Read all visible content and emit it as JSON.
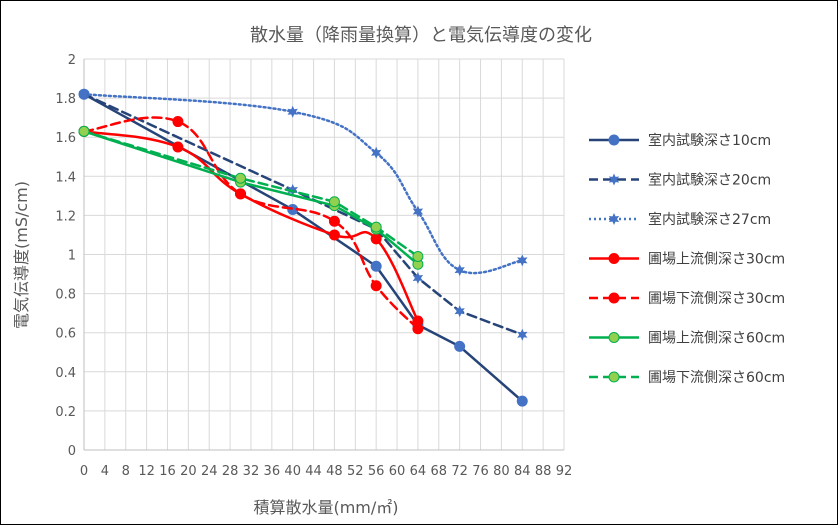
{
  "chart_data": {
    "type": "line",
    "title": "散水量（降雨量換算）と電気伝導度の変化",
    "xlabel": "積算散水量(mm/㎡)",
    "ylabel": "電気伝導度(mS/cm)",
    "xlim": [
      0,
      92
    ],
    "ylim": [
      0,
      2
    ],
    "x_ticks": [
      "0",
      "4",
      "8",
      "12",
      "16",
      "20",
      "24",
      "28",
      "32",
      "36",
      "40",
      "44",
      "48",
      "52",
      "56",
      "60",
      "64",
      "68",
      "72",
      "76",
      "80",
      "84",
      "88",
      "92"
    ],
    "y_ticks": [
      "0",
      "0.2",
      "0.4",
      "0.6",
      "0.8",
      "1",
      "1.2",
      "1.4",
      "1.6",
      "1.8",
      "2"
    ],
    "grid": true,
    "legend_position": "right",
    "series": [
      {
        "name": "室内試験深さ10cm",
        "color": "#264478",
        "line": "solid",
        "marker": "circle",
        "smooth": false,
        "points": [
          [
            0,
            1.82
          ],
          [
            40,
            1.23
          ],
          [
            56,
            0.94
          ],
          [
            64,
            0.64
          ],
          [
            72,
            0.53
          ],
          [
            84,
            0.25
          ]
        ]
      },
      {
        "name": "室内試験深さ20cm",
        "color": "#264478",
        "line": "dashed",
        "marker": "star",
        "smooth": false,
        "points": [
          [
            0,
            1.82
          ],
          [
            40,
            1.33
          ],
          [
            56,
            1.13
          ],
          [
            64,
            0.88
          ],
          [
            72,
            0.71
          ],
          [
            84,
            0.59
          ]
        ]
      },
      {
        "name": "室内試験深さ27cm",
        "color": "#4472C4",
        "line": "dotted",
        "marker": "star",
        "smooth": true,
        "points": [
          [
            0,
            1.82
          ],
          [
            40,
            1.73
          ],
          [
            56,
            1.52
          ],
          [
            64,
            1.22
          ],
          [
            72,
            0.92
          ],
          [
            84,
            0.97
          ]
        ]
      },
      {
        "name": "圃場上流側深さ30cm",
        "color": "#FF0000",
        "line": "solid",
        "marker": "circle",
        "smooth": true,
        "points": [
          [
            0,
            1.63
          ],
          [
            18,
            1.55
          ],
          [
            30,
            1.31
          ],
          [
            48,
            1.1
          ],
          [
            56,
            1.08
          ],
          [
            64,
            0.66
          ]
        ]
      },
      {
        "name": "圃場下流側深さ30cm",
        "color": "#FF0000",
        "line": "dashed",
        "marker": "circle",
        "smooth": true,
        "points": [
          [
            0,
            1.63
          ],
          [
            18,
            1.68
          ],
          [
            30,
            1.31
          ],
          [
            48,
            1.17
          ],
          [
            56,
            0.84
          ],
          [
            64,
            0.62
          ]
        ]
      },
      {
        "name": "圃場上流側深さ60cm",
        "color": "#00B050",
        "line": "solid",
        "marker": "circle-light",
        "smooth": false,
        "points": [
          [
            0,
            1.63
          ],
          [
            30,
            1.37
          ],
          [
            48,
            1.25
          ],
          [
            56,
            1.13
          ],
          [
            64,
            0.95
          ]
        ]
      },
      {
        "name": "圃場下流側深さ60cm",
        "color": "#00B050",
        "line": "dashed",
        "marker": "circle-light",
        "smooth": false,
        "points": [
          [
            0,
            1.63
          ],
          [
            30,
            1.39
          ],
          [
            48,
            1.27
          ],
          [
            56,
            1.14
          ],
          [
            64,
            0.99
          ]
        ]
      }
    ]
  }
}
